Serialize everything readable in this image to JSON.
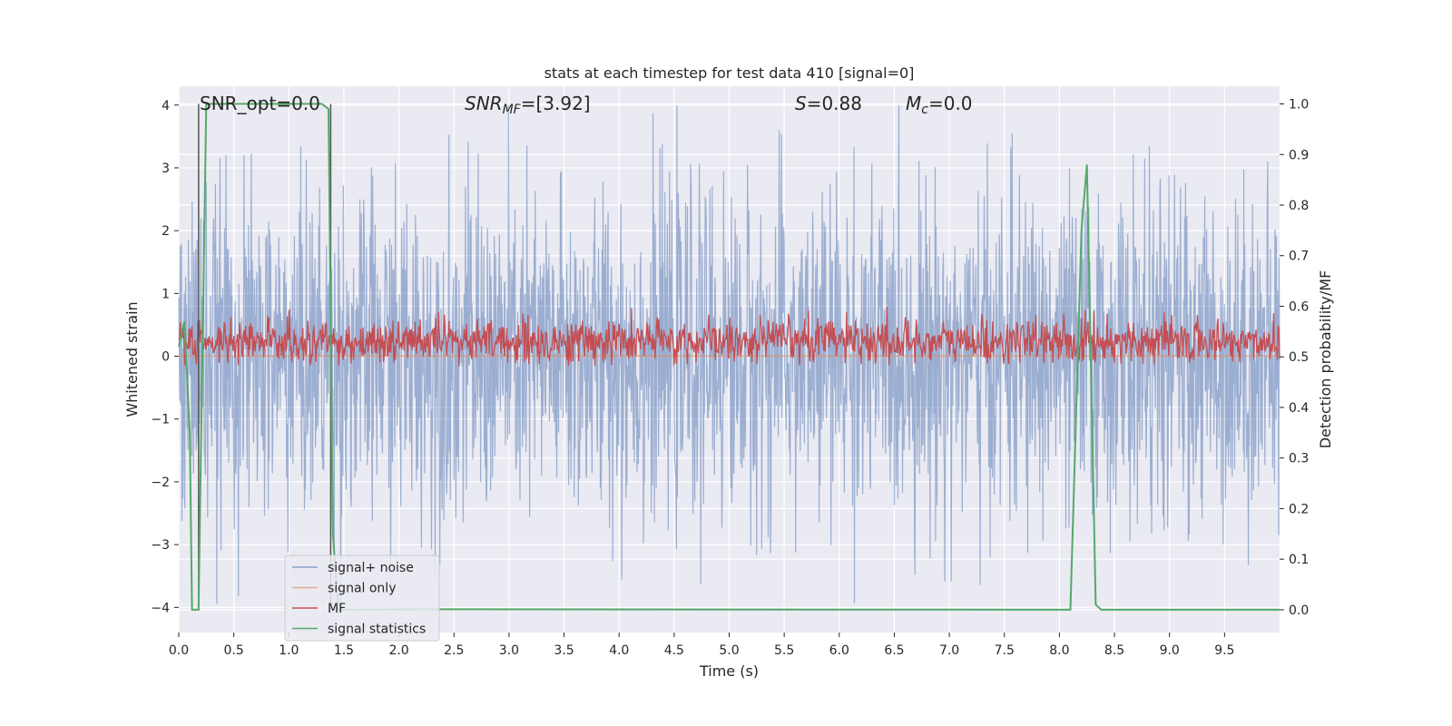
{
  "chart_data": {
    "type": "line",
    "title": "stats at each timestep for test data 410 [signal=0]",
    "xlabel": "Time (s)",
    "ylabel": "Whitened strain",
    "y2label": "Detection probability/MF",
    "xlim": [
      0,
      10
    ],
    "ylim": [
      -4.4,
      4.3
    ],
    "y2lim": [
      -0.045,
      1.035
    ],
    "xticks": [
      0.0,
      0.5,
      1.0,
      1.5,
      2.0,
      2.5,
      3.0,
      3.5,
      4.0,
      4.5,
      5.0,
      5.5,
      6.0,
      6.5,
      7.0,
      7.5,
      8.0,
      8.5,
      9.0,
      9.5
    ],
    "xtick_labels": [
      "0.0",
      "0.5",
      "1.0",
      "1.5",
      "2.0",
      "2.5",
      "3.0",
      "3.5",
      "4.0",
      "4.5",
      "5.0",
      "5.5",
      "6.0",
      "6.5",
      "7.0",
      "7.5",
      "8.0",
      "8.5",
      "9.0",
      "9.5"
    ],
    "yticks": [
      4,
      3,
      2,
      1,
      0,
      -1,
      -2,
      -3,
      -4
    ],
    "ytick_labels": [
      "4",
      "3",
      "2",
      "1",
      "0",
      "−1",
      "−2",
      "−3",
      "−4"
    ],
    "y2ticks": [
      1.0,
      0.9,
      0.8,
      0.7,
      0.6,
      0.5,
      0.4,
      0.3,
      0.2,
      0.1,
      0.0
    ],
    "y2tick_labels": [
      "1.0",
      "0.9",
      "0.8",
      "0.7",
      "0.6",
      "0.5",
      "0.4",
      "0.3",
      "0.2",
      "0.1",
      "0.0"
    ],
    "grid": true,
    "legend_position": "lower-left",
    "annotations": {
      "snr_opt": "SNR_opt=0.0",
      "snr_mf_prefix": "SNR",
      "snr_mf_sub": "MF",
      "snr_mf_suffix": "=[3.92]",
      "s_var": "S",
      "s_val": "=0.88",
      "mc_var": "M",
      "mc_sub": "c",
      "mc_val": "=0.0"
    },
    "vertical_lines_x": [
      0.18,
      1.38
    ],
    "series": [
      {
        "name": "signal+ noise",
        "color": "#4c72b0",
        "axis": "left",
        "description_of_values": "whitened noise, roughly symmetric about 0 with amplitude ~1.3 and peaks to about ±4",
        "amplitude": 1.3,
        "peak": 4.0
      },
      {
        "name": "signal only",
        "color": "#dd8452",
        "axis": "left",
        "x": [
          0,
          10
        ],
        "y": [
          0,
          0
        ]
      },
      {
        "name": "MF",
        "color": "#c44e52",
        "axis": "right",
        "baseline": 0.53,
        "range": [
          0.48,
          0.62
        ]
      },
      {
        "name": "signal statistics",
        "color": "#55a868",
        "axis": "right",
        "x": [
          0.0,
          0.05,
          0.1,
          0.12,
          0.18,
          0.2,
          0.25,
          1.3,
          1.36,
          1.4,
          1.45,
          1.5,
          2.2,
          8.1,
          8.2,
          8.25,
          8.33,
          8.38,
          10.0
        ],
        "y": [
          0.52,
          0.57,
          0.35,
          0.0,
          0.0,
          0.3,
          1.0,
          1.0,
          0.99,
          0.15,
          0.0,
          0.0,
          0.001,
          0.0,
          0.75,
          0.88,
          0.01,
          0.0,
          0.0
        ]
      }
    ]
  }
}
